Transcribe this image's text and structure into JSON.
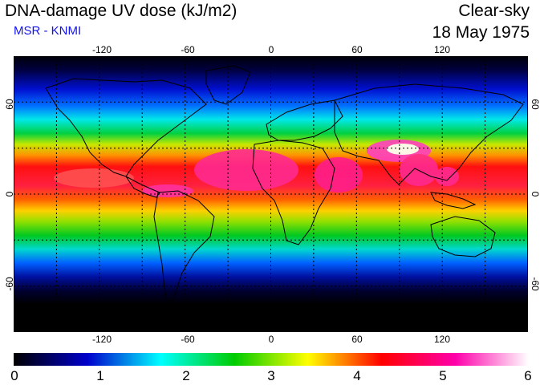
{
  "header": {
    "title": "DNA-damage UV dose (kJ/m2)",
    "credit": "MSR - KNMI",
    "mode": "Clear-sky",
    "date": "18 May 1975"
  },
  "map": {
    "projection": "equirectangular",
    "lon_range": [
      -180,
      180
    ],
    "lat_range": [
      -90,
      90
    ],
    "grid_spacing_deg": 30,
    "grid_style": "dotted",
    "lon_labels": [
      "-120",
      "-60",
      "0",
      "60",
      "120"
    ],
    "lat_labels": [
      "60",
      "0",
      "-60"
    ],
    "lon_label_values": [
      -120,
      -60,
      0,
      60,
      120
    ],
    "lat_label_values": [
      60,
      0,
      -60
    ],
    "coastlines": "black outlines"
  },
  "colorbar": {
    "labels": [
      "0",
      "1",
      "2",
      "3",
      "4",
      "5",
      "6"
    ],
    "min": 0,
    "max": 6,
    "colors": [
      "#000000",
      "#0000cc",
      "#00ffff",
      "#00cc00",
      "#ffff00",
      "#ff0000",
      "#ff00aa",
      "#ffffff"
    ]
  }
}
